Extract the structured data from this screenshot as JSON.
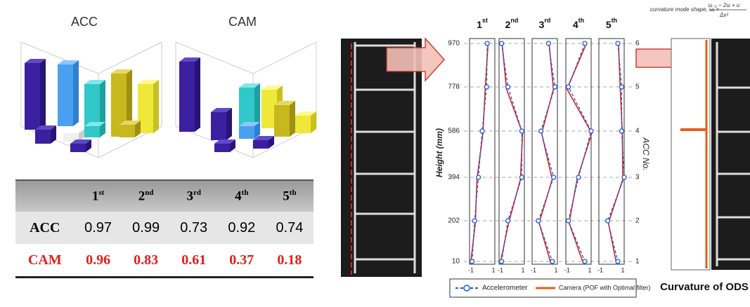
{
  "bar3d": {
    "titles": [
      "ACC",
      "CAM"
    ]
  },
  "table": {
    "header": [
      {
        "num": "1",
        "sup": "st"
      },
      {
        "num": "2",
        "sup": "nd"
      },
      {
        "num": "3",
        "sup": "rd"
      },
      {
        "num": "4",
        "sup": "th"
      },
      {
        "num": "5",
        "sup": "th"
      }
    ],
    "rows": [
      [
        "ACC",
        "0.97",
        "0.99",
        "0.73",
        "0.92",
        "0.74"
      ],
      [
        "CAM",
        "0.96",
        "0.83",
        "0.61",
        "0.37",
        "0.18"
      ]
    ]
  },
  "modes": {
    "headers": [
      {
        "num": "1",
        "sup": "st"
      },
      {
        "num": "2",
        "sup": "nd"
      },
      {
        "num": "3",
        "sup": "rd"
      },
      {
        "num": "4",
        "sup": "th"
      },
      {
        "num": "5",
        "sup": "th"
      }
    ],
    "heights": [
      "970",
      "778",
      "586",
      "394",
      "202",
      "10"
    ],
    "acc_numbers": [
      "6",
      "5",
      "4",
      "3",
      "2",
      "1"
    ],
    "y_label": "Height (mm)",
    "y2_label": "ACC  No.",
    "x_min": "-1",
    "x_max": "1",
    "legend": {
      "acc": "Accelerometer",
      "cam": "Camera (POF with Optimal filter)"
    }
  },
  "curvature": {
    "formula_lead": "curvature mode shape, ωᵢ =",
    "numerator": "uᵢ₋₁ − 2uᵢ + u",
    "denominator": "Δx²",
    "caption": "Curvature of ODS"
  }
}
